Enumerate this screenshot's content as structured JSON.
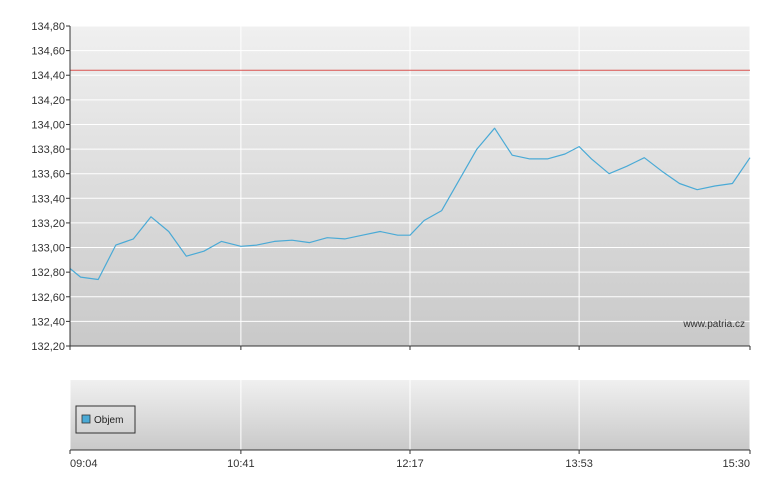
{
  "chart_data": [
    {
      "type": "line",
      "panel": "price",
      "ylim": [
        132.2,
        134.8
      ],
      "y_ticks": [
        "132,20",
        "132,40",
        "132,60",
        "132,80",
        "133,00",
        "133,20",
        "133,40",
        "133,60",
        "133,80",
        "134,00",
        "134,20",
        "134,40",
        "134,60",
        "134,80"
      ],
      "x_ticks": [
        "09:04",
        "10:41",
        "12:17",
        "13:53",
        "15:30"
      ],
      "reference_line": {
        "value": 134.44,
        "color": "#d9534f"
      },
      "watermark": "www.patria.cz",
      "series": [
        {
          "color": "#4aaad6",
          "x": [
            "09:04",
            "09:10",
            "09:20",
            "09:30",
            "09:40",
            "09:50",
            "10:00",
            "10:10",
            "10:20",
            "10:30",
            "10:41",
            "10:50",
            "11:00",
            "11:10",
            "11:20",
            "11:30",
            "11:40",
            "11:50",
            "12:00",
            "12:10",
            "12:17",
            "12:25",
            "12:35",
            "12:45",
            "12:55",
            "13:05",
            "13:15",
            "13:25",
            "13:35",
            "13:45",
            "13:53",
            "14:00",
            "14:10",
            "14:20",
            "14:30",
            "14:40",
            "14:50",
            "15:00",
            "15:10",
            "15:20",
            "15:30"
          ],
          "values": [
            132.83,
            132.76,
            132.74,
            133.02,
            133.07,
            133.25,
            133.13,
            132.93,
            132.97,
            133.05,
            133.01,
            133.02,
            133.05,
            133.06,
            133.04,
            133.08,
            133.07,
            133.1,
            133.13,
            133.1,
            133.1,
            133.22,
            133.3,
            133.55,
            133.8,
            133.97,
            133.75,
            133.72,
            133.72,
            133.76,
            133.82,
            133.72,
            133.6,
            133.66,
            133.73,
            133.62,
            133.52,
            133.47,
            133.5,
            133.52,
            133.73
          ]
        }
      ]
    },
    {
      "type": "bar",
      "panel": "volume",
      "legend": [
        "Objem"
      ],
      "legend_color": "#4aaad6",
      "values": []
    }
  ]
}
